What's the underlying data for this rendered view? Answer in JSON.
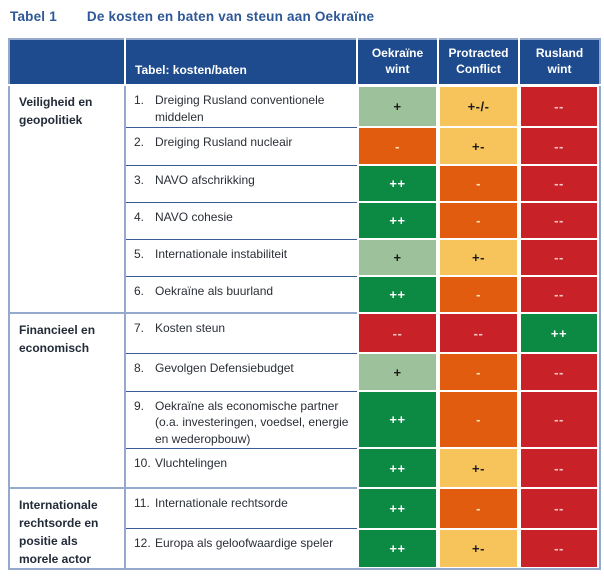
{
  "title": {
    "label": "Tabel 1",
    "text": "De kosten en baten van steun aan Oekraïne"
  },
  "table": {
    "corner_label": "",
    "item_header": "Tabel: kosten/baten",
    "scenario_headers": [
      "Oekraïne wint",
      "Protracted Conflict",
      "Rusland wint"
    ],
    "sections": [
      {
        "category": "Veiligheid en geopolitiek",
        "rows": [
          {
            "num": "1.",
            "label": "Dreiging Rusland conventionele middelen",
            "scores": [
              {
                "value": "+",
                "level": "pos1"
              },
              {
                "value": "+-/-",
                "level": "mixed"
              },
              {
                "value": "--",
                "level": "neg2"
              }
            ]
          },
          {
            "num": "2.",
            "label": "Dreiging Rusland nucleair",
            "scores": [
              {
                "value": "-",
                "level": "neg1"
              },
              {
                "value": "+-",
                "level": "mixed"
              },
              {
                "value": "--",
                "level": "neg2"
              }
            ]
          },
          {
            "num": "3.",
            "label": "NAVO afschrikking",
            "scores": [
              {
                "value": "++",
                "level": "pos2"
              },
              {
                "value": "-",
                "level": "neg1"
              },
              {
                "value": "--",
                "level": "neg2"
              }
            ]
          },
          {
            "num": "4.",
            "label": "NAVO cohesie",
            "scores": [
              {
                "value": "++",
                "level": "pos2"
              },
              {
                "value": "-",
                "level": "neg1"
              },
              {
                "value": "--",
                "level": "neg2"
              }
            ]
          },
          {
            "num": "5.",
            "label": "Internationale instabiliteit",
            "scores": [
              {
                "value": "+",
                "level": "pos1"
              },
              {
                "value": "+-",
                "level": "mixed"
              },
              {
                "value": "--",
                "level": "neg2"
              }
            ]
          },
          {
            "num": "6.",
            "label": "Oekraïne als buurland",
            "scores": [
              {
                "value": "++",
                "level": "pos2"
              },
              {
                "value": "-",
                "level": "neg1"
              },
              {
                "value": "--",
                "level": "neg2"
              }
            ]
          }
        ]
      },
      {
        "category": "Financieel en economisch",
        "rows": [
          {
            "num": "7.",
            "label": "Kosten steun",
            "scores": [
              {
                "value": "--",
                "level": "neg2"
              },
              {
                "value": "--",
                "level": "neg2"
              },
              {
                "value": "++",
                "level": "pos2"
              }
            ]
          },
          {
            "num": "8.",
            "label": "Gevolgen Defensiebudget",
            "scores": [
              {
                "value": "+",
                "level": "pos1"
              },
              {
                "value": "-",
                "level": "neg1"
              },
              {
                "value": "--",
                "level": "neg2"
              }
            ]
          },
          {
            "num": "9.",
            "label": "Oekraïne als economische partner (o.a. investeringen, voedsel, energie en wederopbouw)",
            "scores": [
              {
                "value": "++",
                "level": "pos2"
              },
              {
                "value": "-",
                "level": "neg1"
              },
              {
                "value": "--",
                "level": "neg2"
              }
            ]
          },
          {
            "num": "10.",
            "label": "Vluchtelingen",
            "scores": [
              {
                "value": "++",
                "level": "pos2"
              },
              {
                "value": "+-",
                "level": "mixed"
              },
              {
                "value": "--",
                "level": "neg2"
              }
            ]
          }
        ]
      },
      {
        "category": "Internationale rechtsorde en positie als morele actor",
        "rows": [
          {
            "num": "11.",
            "label": "Internationale rechtsorde",
            "scores": [
              {
                "value": "++",
                "level": "pos2"
              },
              {
                "value": "-",
                "level": "neg1"
              },
              {
                "value": "--",
                "level": "neg2"
              }
            ]
          },
          {
            "num": "12.",
            "label": "Europa als geloofwaardige speler",
            "scores": [
              {
                "value": "++",
                "level": "pos2"
              },
              {
                "value": "+-",
                "level": "mixed"
              },
              {
                "value": "--",
                "level": "neg2"
              }
            ]
          }
        ]
      }
    ]
  },
  "colors": {
    "title": "#2D5796",
    "header_bg": "#1E4B8D",
    "header_text": "#FFFFFF",
    "border_outer": "#94A9CB",
    "row_line": "#3A5B96",
    "cat_text": "#222B38",
    "item_text": "#2A2F36",
    "dark_text": "#1C1C1C",
    "pos2": "#0C8A44",
    "pos2_text": "#FFFFFF",
    "pos1": "#9DC19B",
    "mixed": "#F7C45B",
    "neg1": "#E25C10",
    "neg1_text": "#FCE3BC",
    "neg2": "#C92128",
    "neg2_text": "#F4CBC5"
  }
}
